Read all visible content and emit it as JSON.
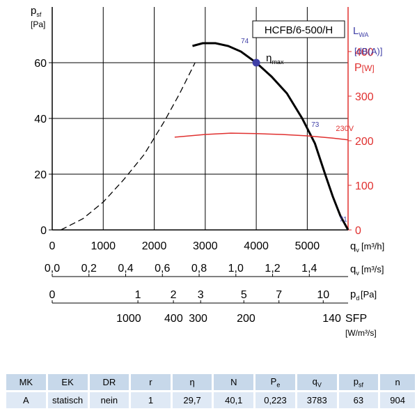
{
  "chart_data": {
    "type": "line",
    "model": "HCFB/6-500/H",
    "ylabel_main": "p",
    "ylabel_main_sub": "sf",
    "ylabel_main_unit": "[Pa]",
    "yticks": [
      0,
      20,
      40,
      60
    ],
    "ylim": [
      0,
      80
    ],
    "xlim_m3h": [
      0,
      5800
    ],
    "xticks_m3h": [
      0,
      1000,
      2000,
      3000,
      4000,
      5000
    ],
    "right_axis_lwa": "L",
    "right_axis_lwa_sub": "WA",
    "right_axis_lwa_unit": "[dB(A)]",
    "right_axis_power": "P",
    "right_axis_power_unit": "[W]",
    "right_yticks": [
      0,
      100,
      200,
      300,
      400
    ],
    "right_ylim": [
      0,
      500
    ],
    "axis_qv_m3h": {
      "label": "q",
      "sub": "v",
      "unit": "[m³/h]"
    },
    "axis_qv_m3s": {
      "label": "q",
      "sub": "v",
      "unit": "[m³/s]",
      "ticks": [
        {
          "v": 0.0,
          "t": "0,0"
        },
        {
          "v": 0.2,
          "t": "0,2"
        },
        {
          "v": 0.4,
          "t": "0,4"
        },
        {
          "v": 0.6,
          "t": "0,6"
        },
        {
          "v": 0.8,
          "t": "0,8"
        },
        {
          "v": 1.0,
          "t": "1,0"
        },
        {
          "v": 1.2,
          "t": "1,2"
        },
        {
          "v": 1.4,
          "t": "1,4"
        }
      ]
    },
    "axis_pd": {
      "label": "p",
      "sub": "d",
      "unit": "[Pa]",
      "ticks": [
        {
          "v": 0,
          "t": "0"
        },
        {
          "v": 1,
          "t": "1"
        },
        {
          "v": 2,
          "t": "2"
        },
        {
          "v": 3,
          "t": "3"
        },
        {
          "v": 5,
          "t": "5"
        },
        {
          "v": 7,
          "t": "7"
        },
        {
          "v": 10,
          "t": "10"
        }
      ]
    },
    "axis_sfp": {
      "label": "SFP",
      "unit": "[W/m³/s]",
      "ticks": [
        {
          "x": 1500,
          "t": "1000"
        },
        {
          "x": 2380,
          "t": "400"
        },
        {
          "x": 2860,
          "t": "300"
        },
        {
          "x": 3800,
          "t": "200"
        },
        {
          "x": 5480,
          "t": "140"
        }
      ]
    },
    "series": [
      {
        "role": "unstable",
        "style": "dashed",
        "x": [
          170,
          600,
          1000,
          1400,
          1800,
          2200,
          2500,
          2800
        ],
        "y": [
          0,
          4,
          10,
          18,
          27,
          39,
          49,
          60
        ]
      },
      {
        "role": "pressure",
        "style": "solid",
        "x": [
          2750,
          2950,
          3200,
          3450,
          3700,
          4000,
          4300,
          4600,
          4900,
          5150,
          5350,
          5500,
          5650,
          5800
        ],
        "y": [
          66,
          67,
          67,
          66,
          64,
          60,
          55,
          49,
          40,
          31,
          20,
          12,
          5,
          0
        ]
      },
      {
        "role": "power",
        "name": "230V",
        "style": "red",
        "x": [
          2400,
          3000,
          3500,
          4000,
          4500,
          5000,
          5500,
          5800
        ],
        "y": [
          208,
          214,
          217,
          216,
          214,
          211,
          206,
          202
        ]
      }
    ],
    "annotations": [
      {
        "text": "74",
        "x": 3700,
        "y": 67
      },
      {
        "text": "73",
        "x": 5080,
        "y": 37
      },
      {
        "text": "71",
        "x": 5630,
        "y": 3
      },
      {
        "text": "230V",
        "x": 5560,
        "y": 28
      }
    ],
    "eta_max": {
      "label": "η",
      "sub": "max",
      "x": 4000,
      "y": 60
    }
  },
  "table": {
    "headers": [
      {
        "t": "MK",
        "s": ""
      },
      {
        "t": "EK",
        "s": ""
      },
      {
        "t": "DR",
        "s": ""
      },
      {
        "t": "r",
        "s": ""
      },
      {
        "t": "η",
        "s": ""
      },
      {
        "t": "N",
        "s": ""
      },
      {
        "t": "P",
        "s": "e"
      },
      {
        "t": "q",
        "s": "V"
      },
      {
        "t": "p",
        "s": "sf"
      },
      {
        "t": "n",
        "s": ""
      }
    ],
    "values": [
      "A",
      "statisch",
      "nein",
      "1",
      "29,7",
      "40,1",
      "0,223",
      "3783",
      "63",
      "904"
    ]
  },
  "colors": {
    "accent_red": "#e0302f",
    "accent_blue": "#3f3fa6",
    "header_bg": "#c7d8ea",
    "value_bg": "#dfe9f5"
  }
}
